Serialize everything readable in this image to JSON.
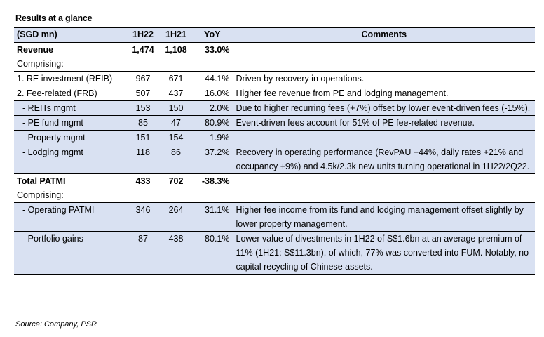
{
  "title": "Results at a glance",
  "header": {
    "label": "(SGD mn)",
    "h22": "1H22",
    "h21": "1H21",
    "yoy": "YoY",
    "comments": "Comments"
  },
  "rows": [
    {
      "label": "Revenue",
      "h22": "1,474",
      "h21": "1,108",
      "yoy": "33.0%",
      "comment": ""
    },
    {
      "label": "Comprising:",
      "h22": "",
      "h21": "",
      "yoy": "",
      "comment": ""
    },
    {
      "label": "1. RE investment (REIB)",
      "h22": "967",
      "h21": "671",
      "yoy": "44.1%",
      "comment": "Driven by recovery in operations."
    },
    {
      "label": "2. Fee-related (FRB)",
      "h22": "507",
      "h21": "437",
      "yoy": "16.0%",
      "comment": "Higher fee revenue from PE and lodging management."
    },
    {
      "label": "  - REITs mgmt",
      "h22": "153",
      "h21": "150",
      "yoy": "2.0%",
      "comment": "Due to higher recurring fees (+7%) offset by lower event-driven fees (-15%)."
    },
    {
      "label": "  - PE fund mgmt",
      "h22": "85",
      "h21": "47",
      "yoy": "80.9%",
      "comment": "Event-driven fees account for 51% of PE fee-related revenue."
    },
    {
      "label": "  - Property mgmt",
      "h22": "151",
      "h21": "154",
      "yoy": "-1.9%",
      "comment": ""
    },
    {
      "label": "  - Lodging mgmt",
      "h22": "118",
      "h21": "86",
      "yoy": "37.2%",
      "comment": "Recovery in operating performance (RevPAU +44%, daily rates +21% and occupancy +9%) and 4.5k/2.3k new units turning operational in 1H22/2Q22."
    },
    {
      "label": "Total PATMI",
      "h22": "433",
      "h21": "702",
      "yoy": "-38.3%",
      "comment": ""
    },
    {
      "label": "Comprising:",
      "h22": "",
      "h21": "",
      "yoy": "",
      "comment": ""
    },
    {
      "label": "  - Operating PATMI",
      "h22": "346",
      "h21": "264",
      "yoy": "31.1%",
      "comment": "Higher fee income from its fund and lodging management offset slightly by lower property management."
    },
    {
      "label": "  - Portfolio gains",
      "h22": "87",
      "h21": "438",
      "yoy": "-80.1%",
      "comment": "Lower value of divestments in 1H22 of S$1.6bn at an average premium of 11% (1H21: S$11.3bn), of which, 77% was converted into FUM. Notably, no capital recycling of Chinese assets."
    }
  ],
  "source": "Source: Company, PSR",
  "colors": {
    "header_bg": "#d9e1f2",
    "shade_bg": "#d9e1f2"
  }
}
